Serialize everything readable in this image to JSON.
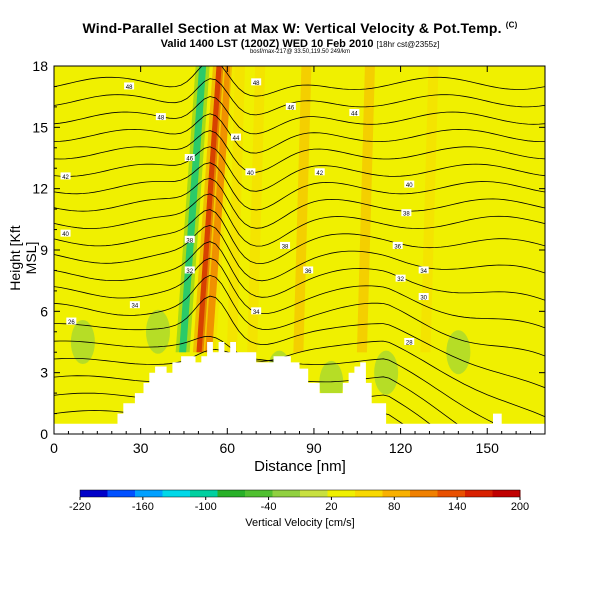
{
  "header": {
    "title": "Wind-Parallel Section at Max W: Vertical Velocity & Pot.Temp.",
    "copyright": "(C)",
    "subtitle_main": "Valid 1400 LST (1200Z) WED 10 Feb 2010",
    "subtitle_note": "[18hr cst@2355z]",
    "subtitle_small": "bosf/max-217@ 33.50,119.50 249/km"
  },
  "chart_data": {
    "type": "heatmap",
    "title": "Wind-Parallel Section at Max W: Vertical Velocity & Pot.Temp.",
    "xlabel": "Distance [nm]",
    "ylabel": "Height [Kft MSL]",
    "xlim": [
      0,
      170
    ],
    "ylim": [
      0,
      18
    ],
    "xticks": [
      0,
      30,
      60,
      90,
      120,
      150
    ],
    "yticks": [
      0,
      3,
      6,
      9,
      12,
      15,
      18
    ],
    "colorbar": {
      "label": "Vertical Velocity [cm/s]",
      "min": -220,
      "max": 200,
      "ticks": [
        -220,
        -160,
        -100,
        -40,
        20,
        80,
        140,
        200
      ],
      "colors": [
        "#0000c8",
        "#0050ff",
        "#00a0ff",
        "#00d8e8",
        "#00d0a0",
        "#28b028",
        "#50c030",
        "#90d040",
        "#c8e040",
        "#f0f000",
        "#f8d800",
        "#f8b000",
        "#f08000",
        "#e85000",
        "#d82000",
        "#c00000"
      ]
    },
    "updraft_bands": [
      {
        "x": 48,
        "value": -110
      },
      {
        "x": 54,
        "value": 190
      },
      {
        "x": 57,
        "value": 130
      },
      {
        "x": 63,
        "value": 60
      },
      {
        "x": 70,
        "value": 55
      },
      {
        "x": 86,
        "value": 70
      },
      {
        "x": 108,
        "value": 70
      },
      {
        "x": 130,
        "value": 60
      }
    ],
    "terrain": {
      "x": [
        0,
        20,
        22,
        24,
        28,
        31,
        33,
        35,
        39,
        41,
        44,
        47,
        49,
        51,
        53,
        55,
        57,
        59,
        61,
        63,
        66,
        70,
        76,
        82,
        85,
        88,
        92,
        96,
        100,
        102,
        104,
        106,
        108,
        110,
        115,
        150,
        152,
        155,
        170
      ],
      "height": [
        0.5,
        0.5,
        1.0,
        1.5,
        2.0,
        2.5,
        3.0,
        3.3,
        3.0,
        3.5,
        3.8,
        3.8,
        3.5,
        3.8,
        4.5,
        4.0,
        4.5,
        4.0,
        4.5,
        4.0,
        4.0,
        3.5,
        3.8,
        3.5,
        3.2,
        2.5,
        2.0,
        2.0,
        2.5,
        3.0,
        3.3,
        3.5,
        2.5,
        1.5,
        0.5,
        0.5,
        1.0,
        0.5,
        0.5
      ]
    },
    "isentrope_labels": [
      {
        "x": 6,
        "y": 5.5,
        "text": "26"
      },
      {
        "x": 28,
        "y": 6.3,
        "text": "34"
      },
      {
        "x": 4,
        "y": 9.8,
        "text": "40"
      },
      {
        "x": 4,
        "y": 12.6,
        "text": "42"
      },
      {
        "x": 37,
        "y": 15.5,
        "text": "48"
      },
      {
        "x": 26,
        "y": 17.0,
        "text": "48"
      },
      {
        "x": 47,
        "y": 13.5,
        "text": "46"
      },
      {
        "x": 47,
        "y": 9.5,
        "text": "38"
      },
      {
        "x": 47,
        "y": 8.0,
        "text": "32"
      },
      {
        "x": 70,
        "y": 17.2,
        "text": "48"
      },
      {
        "x": 63,
        "y": 14.5,
        "text": "44"
      },
      {
        "x": 68,
        "y": 12.8,
        "text": "40"
      },
      {
        "x": 70,
        "y": 6.0,
        "text": "34"
      },
      {
        "x": 80,
        "y": 9.2,
        "text": "38"
      },
      {
        "x": 82,
        "y": 16.0,
        "text": "46"
      },
      {
        "x": 92,
        "y": 12.8,
        "text": "42"
      },
      {
        "x": 88,
        "y": 8.0,
        "text": "36"
      },
      {
        "x": 104,
        "y": 15.7,
        "text": "44"
      },
      {
        "x": 123,
        "y": 12.2,
        "text": "40"
      },
      {
        "x": 122,
        "y": 10.8,
        "text": "38"
      },
      {
        "x": 119,
        "y": 9.2,
        "text": "36"
      },
      {
        "x": 120,
        "y": 7.6,
        "text": "32"
      },
      {
        "x": 128,
        "y": 6.7,
        "text": "30"
      },
      {
        "x": 128,
        "y": 8.0,
        "text": "34"
      },
      {
        "x": 123,
        "y": 4.5,
        "text": "28"
      }
    ]
  }
}
